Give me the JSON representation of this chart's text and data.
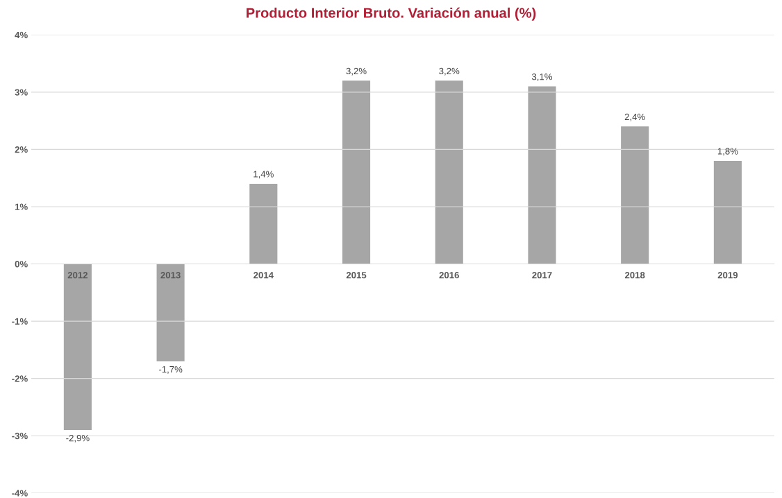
{
  "chart_data": {
    "type": "bar",
    "title": "Producto Interior Bruto. Variación anual (%)",
    "categories": [
      "2012",
      "2013",
      "2014",
      "2015",
      "2016",
      "2017",
      "2018",
      "2019"
    ],
    "series": [
      {
        "color": "#a6a6a6",
        "values": [
          -2.9,
          -1.7,
          1.4,
          3.2,
          3.2,
          3.1,
          2.4,
          1.8
        ],
        "value_labels": [
          "-2,9%",
          "-1,7%",
          "1,4%",
          "3,2%",
          "3,2%",
          "3,1%",
          "2,4%",
          "1,8%"
        ]
      }
    ],
    "ylim": [
      -4,
      4
    ],
    "yticks": [
      {
        "value": -4,
        "label": "-4%"
      },
      {
        "value": -3,
        "label": "-3%"
      },
      {
        "value": -2,
        "label": "-2%"
      },
      {
        "value": -1,
        "label": "-1%"
      },
      {
        "value": 0,
        "label": "0%"
      },
      {
        "value": 1,
        "label": "1%"
      },
      {
        "value": 2,
        "label": "2%"
      },
      {
        "value": 3,
        "label": "3%"
      },
      {
        "value": 4,
        "label": "4%"
      }
    ],
    "grid": "y",
    "legend": false
  }
}
